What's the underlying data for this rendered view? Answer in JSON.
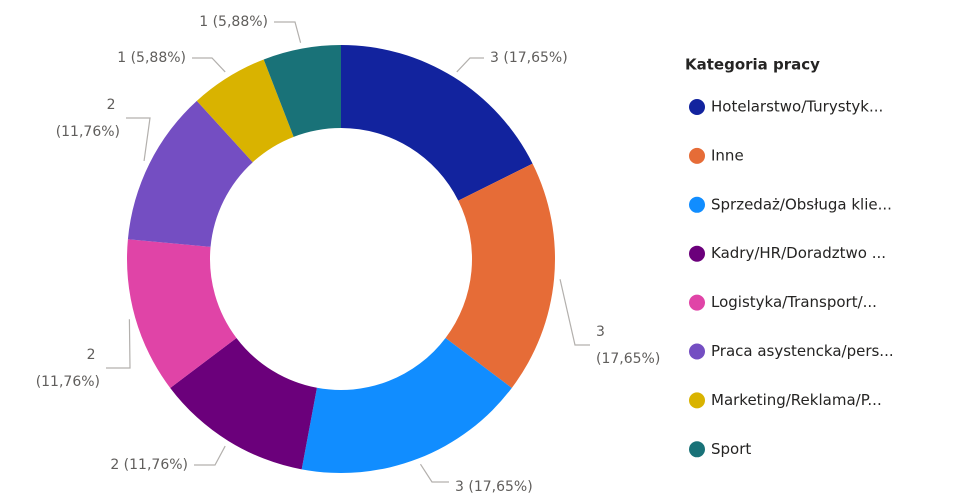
{
  "chart_data": {
    "type": "donut",
    "legend_title": "Kategoria pracy",
    "categories": [
      "Hotelarstwo/Turystyk...",
      "Inne",
      "Sprzedaż/Obsługa klie...",
      "Kadry/HR/Doradztwo ...",
      "Logistyka/Transport/...",
      "Praca asystencka/pers...",
      "Marketing/Reklama/P...",
      "Sport"
    ],
    "values": [
      3,
      3,
      3,
      2,
      2,
      2,
      1,
      1
    ],
    "value_labels": [
      "3 (17,65%)",
      "3 (17,65%)",
      "3 (17,65%)",
      "2 (11,76%)",
      "2 (11,76%)",
      "2 (11,76%)",
      "1 (5,88%)",
      "1 (5,88%)"
    ],
    "colors": [
      "#12239E",
      "#E66C37",
      "#118DFF",
      "#6B007B",
      "#E044A7",
      "#744EC2",
      "#D9B300",
      "#197278"
    ]
  }
}
